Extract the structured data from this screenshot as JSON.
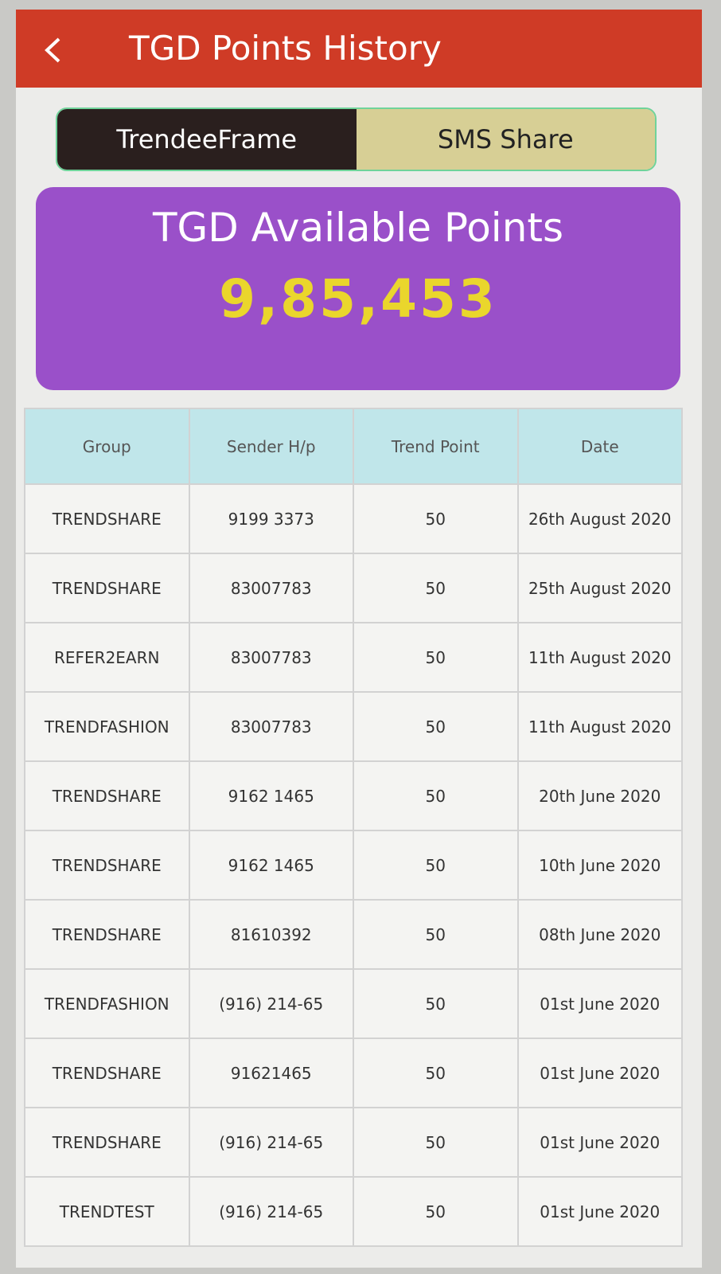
{
  "header": {
    "title": "TGD Points History"
  },
  "tabs": [
    "TrendeeFrame",
    "SMS Share"
  ],
  "points_card": {
    "title": "TGD Available Points",
    "value": "9,85,453"
  },
  "table": {
    "columns": [
      "Group",
      "Sender H/p",
      "Trend Point",
      "Date"
    ],
    "rows": [
      [
        "TRENDSHARE",
        "9199 3373",
        50,
        "26th August 2020"
      ],
      [
        "TRENDSHARE",
        "83007783",
        50,
        "25th August 2020"
      ],
      [
        "REFER2EARN",
        "83007783",
        50,
        "11th August 2020"
      ],
      [
        "TRENDFASHION",
        "83007783",
        50,
        "11th August 2020"
      ],
      [
        "TRENDSHARE",
        "9162 1465",
        50,
        "20th June 2020"
      ],
      [
        "TRENDSHARE",
        "9162 1465",
        50,
        "10th June 2020"
      ],
      [
        "TRENDSHARE",
        "81610392",
        50,
        "08th June 2020"
      ],
      [
        "TRENDFASHION",
        "(916) 214-65",
        50,
        "01st June 2020"
      ],
      [
        "TRENDSHARE",
        "91621465",
        50,
        "01st June 2020"
      ],
      [
        "TRENDSHARE",
        "(916) 214-65",
        50,
        "01st June 2020"
      ],
      [
        "TRENDTEST",
        "(916) 214-65",
        50,
        "01st June 2020"
      ]
    ]
  }
}
